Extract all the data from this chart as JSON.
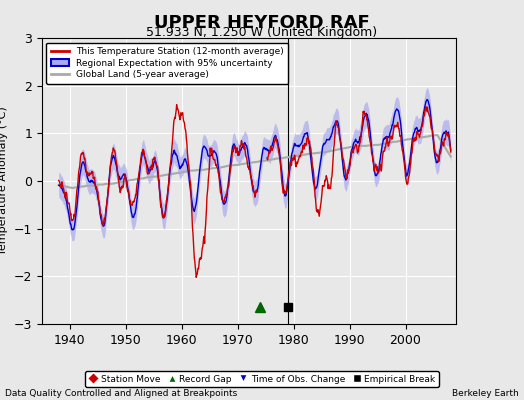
{
  "title": "UPPER HEYFORD RAF",
  "subtitle": "51.933 N, 1.250 W (United Kingdom)",
  "ylabel": "Temperature Anomaly (°C)",
  "xlabel_left": "Data Quality Controlled and Aligned at Breakpoints",
  "xlabel_right": "Berkeley Earth",
  "ylim": [
    -3,
    3
  ],
  "xlim": [
    1935,
    2009
  ],
  "yticks": [
    -3,
    -2,
    -1,
    0,
    1,
    2,
    3
  ],
  "xticks": [
    1940,
    1950,
    1960,
    1970,
    1980,
    1990,
    2000
  ],
  "background_color": "#e8e8e8",
  "plot_bg_color": "#e8e8e8",
  "grid_color": "white",
  "legend_station": "This Temperature Station (12-month average)",
  "legend_regional": "Regional Expectation with 95% uncertainty",
  "legend_global": "Global Land (5-year average)",
  "station_color": "#cc0000",
  "regional_color": "#0000cc",
  "regional_fill_color": "#aaaaee",
  "global_color": "#aaaaaa",
  "marker_record_gap_x": 1974,
  "marker_record_gap_y": -2.65,
  "marker_empirical_x": 1979,
  "marker_empirical_y": -2.65,
  "seed": 42
}
